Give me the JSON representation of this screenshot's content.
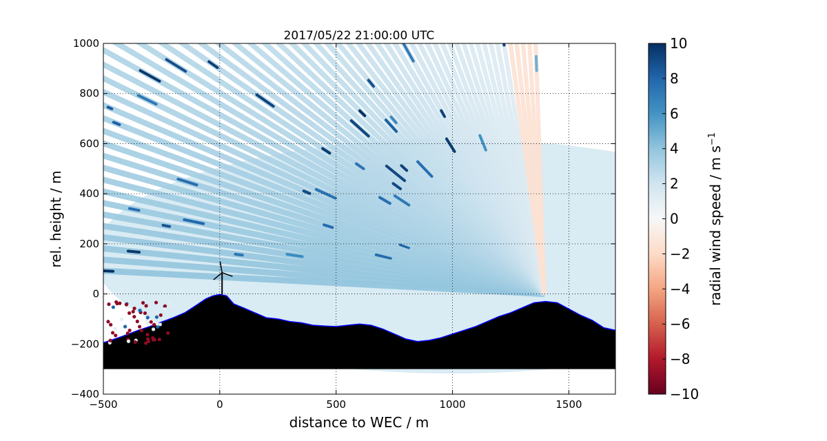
{
  "chart_data": {
    "type": "heatmap",
    "title": "2017/05/22 21:00:00 UTC",
    "xlabel": "distance to WEC / m",
    "ylabel": "rel. height / m",
    "xlim": [
      -500,
      1700
    ],
    "ylim": [
      -400,
      1000
    ],
    "xticks": [
      -500,
      0,
      500,
      1000,
      1500
    ],
    "yticks": [
      -400,
      -200,
      0,
      200,
      400,
      600,
      800,
      1000
    ],
    "grid": true,
    "colorbar": {
      "label": "radial wind speed / m s",
      "label_superscript": "−1",
      "range": [
        -10,
        10
      ],
      "ticks": [
        10,
        8,
        6,
        4,
        2,
        0,
        -2,
        -4,
        -6,
        -8,
        -10
      ],
      "tick_labels": [
        "10",
        "8",
        "6",
        "4",
        "2",
        "0",
        "−2",
        "−4",
        "−6",
        "−8",
        "−10"
      ],
      "colors": [
        "#67001f",
        "#b2182b",
        "#d6604d",
        "#f4a582",
        "#fddbc7",
        "#f7f7f7",
        "#d1e5f0",
        "#92c5de",
        "#4393c3",
        "#2166ac",
        "#053061"
      ]
    },
    "lidar_origin": [
      1395,
      0
    ],
    "rhi_scan": {
      "description_values": "radial wind speed along lidar beams",
      "beam_elevation_count": 60,
      "typical_speed_near_ground": 4,
      "typical_speed_aloft": 1
    },
    "terrain_profile": {
      "x": [
        -500,
        -420,
        -350,
        -300,
        -250,
        -200,
        -150,
        -100,
        -60,
        -30,
        0,
        30,
        60,
        100,
        150,
        200,
        250,
        300,
        350,
        400,
        450,
        500,
        550,
        600,
        650,
        700,
        750,
        800,
        850,
        900,
        950,
        1000,
        1050,
        1100,
        1150,
        1200,
        1250,
        1300,
        1350,
        1400,
        1450,
        1500,
        1550,
        1600,
        1650,
        1700
      ],
      "y": [
        -195,
        -170,
        -145,
        -130,
        -112,
        -95,
        -75,
        -45,
        -20,
        -8,
        -2,
        -8,
        -40,
        -55,
        -75,
        -95,
        -100,
        -110,
        -115,
        -125,
        -128,
        -130,
        -125,
        -120,
        -125,
        -140,
        -160,
        -180,
        -190,
        -185,
        -175,
        -160,
        -145,
        -130,
        -110,
        -90,
        -75,
        -55,
        -35,
        -30,
        -35,
        -60,
        -85,
        -105,
        -135,
        -145
      ],
      "base": -300,
      "fill": "#000000",
      "outline": "#0000ff"
    },
    "wec": {
      "x": 10,
      "hub_height": 85,
      "rotor_radius": 48
    }
  }
}
